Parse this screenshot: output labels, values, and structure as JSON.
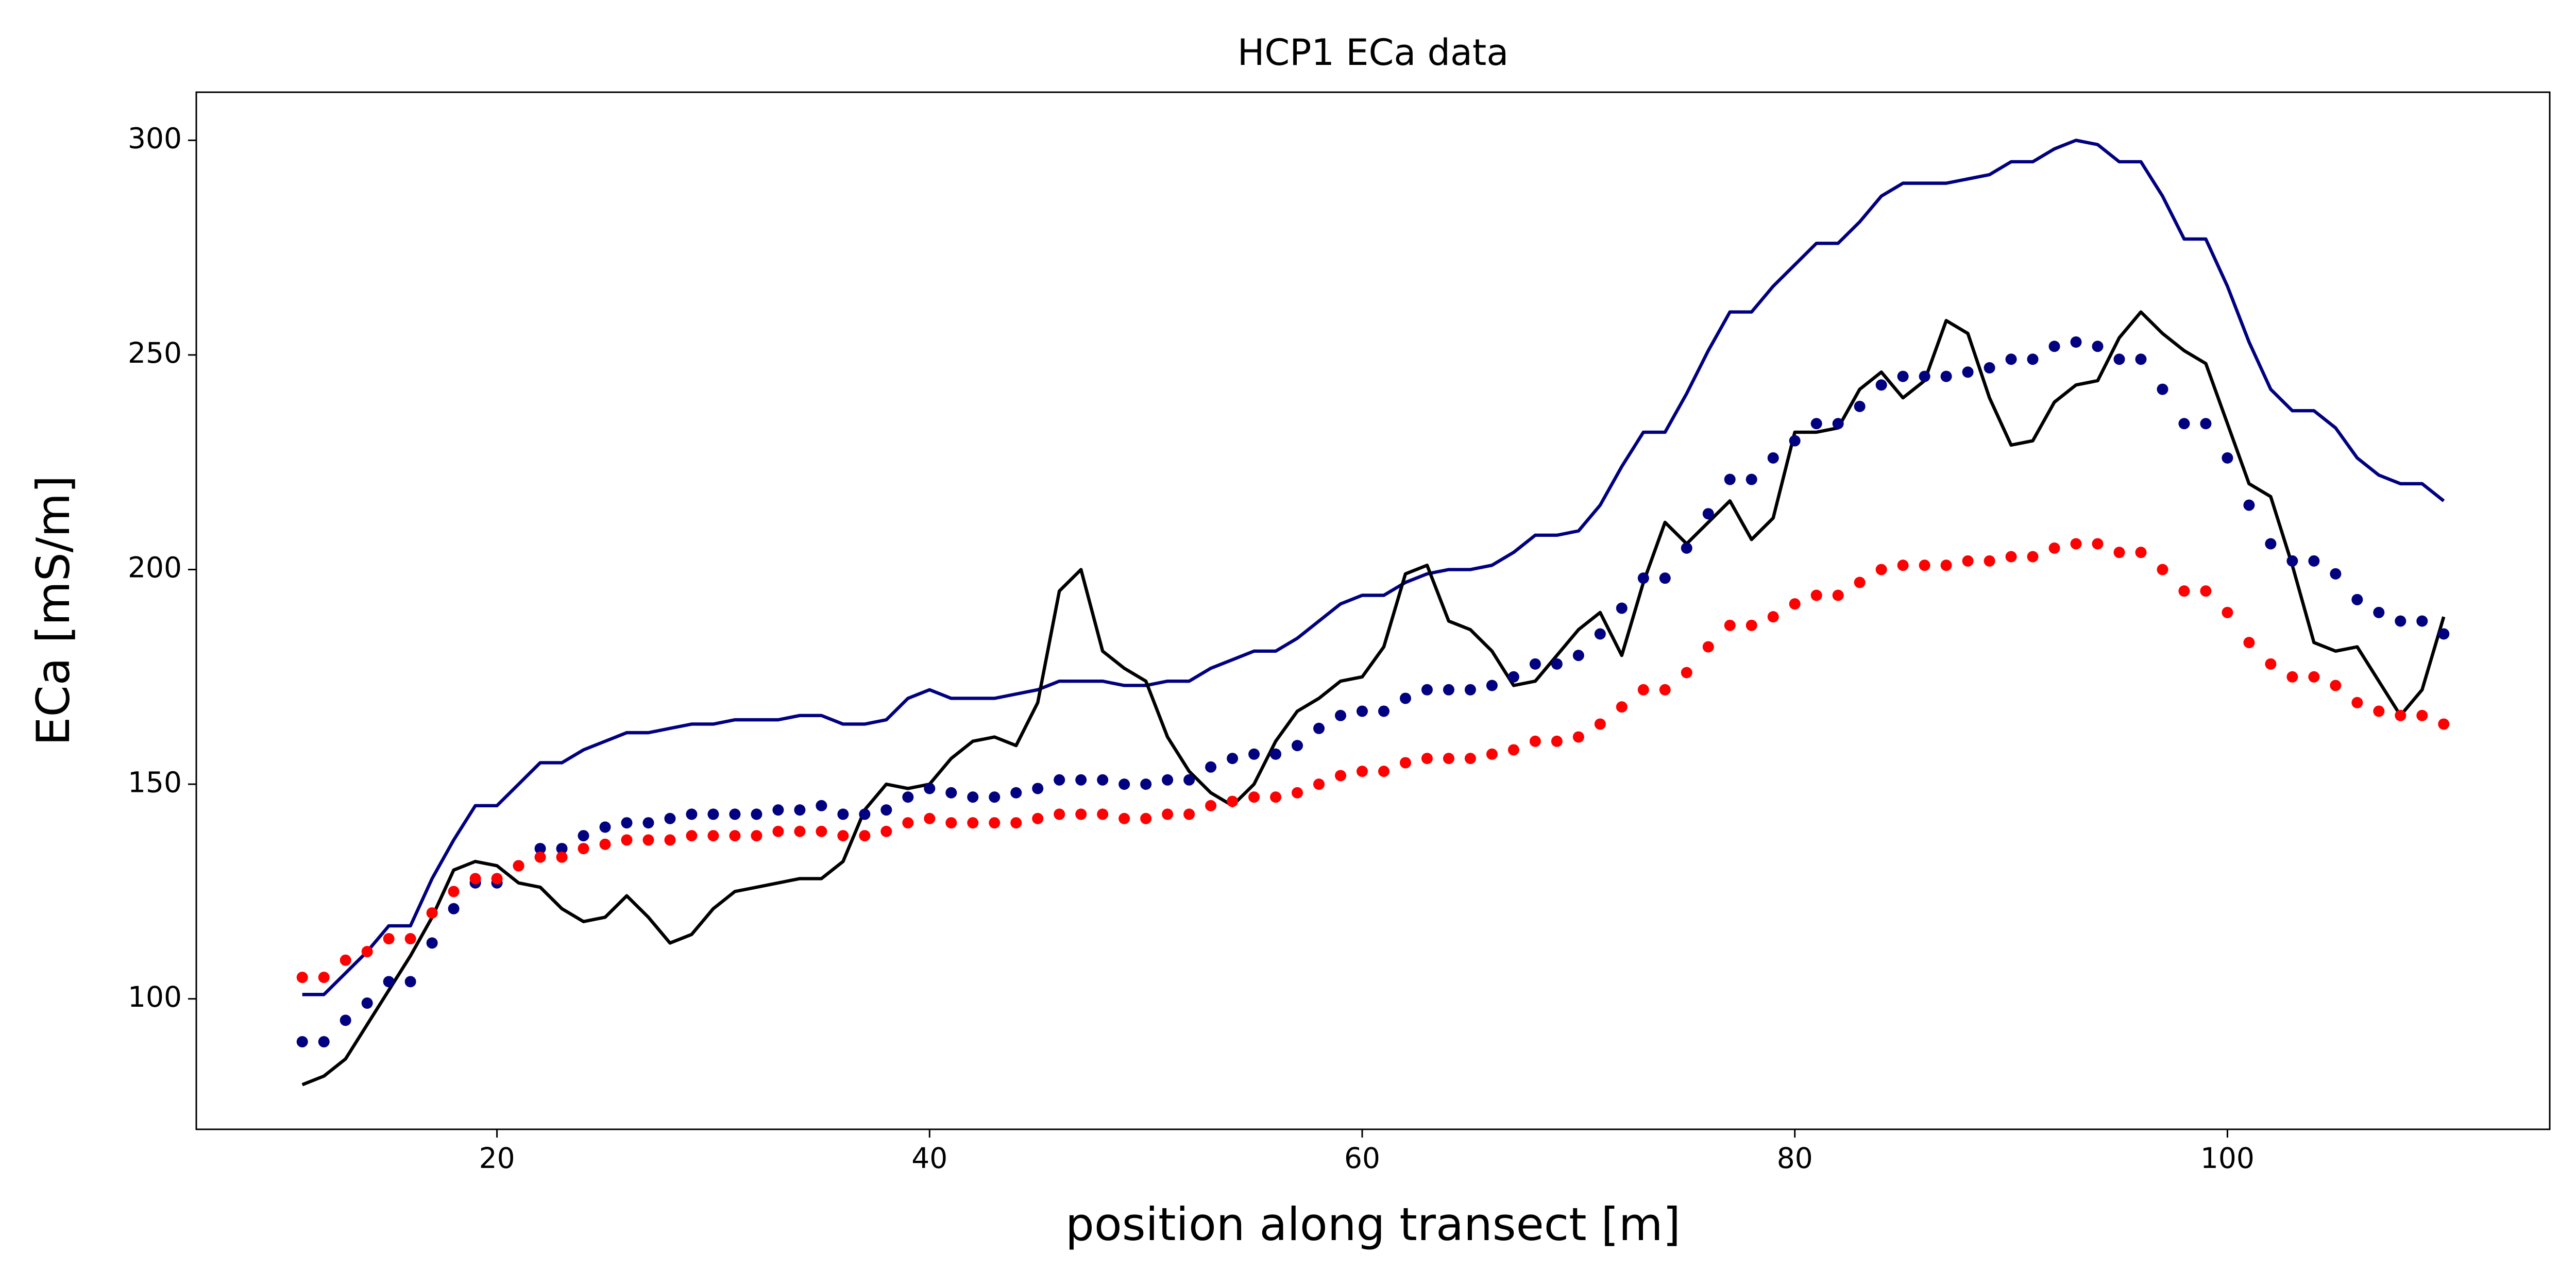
{
  "chart_data": {
    "type": "line",
    "title": "HCP1 ECa data",
    "x_label": "position along transect [m]",
    "y_label": "ECa [mS/m]",
    "x": [
      11,
      12,
      13,
      14,
      15,
      16,
      17,
      18,
      19,
      20,
      21,
      22,
      23,
      24,
      25,
      26,
      27,
      28,
      29,
      30,
      31,
      32,
      33,
      34,
      35,
      36,
      37,
      38,
      39,
      40,
      41,
      42,
      43,
      44,
      45,
      46,
      47,
      48,
      49,
      50,
      51,
      52,
      53,
      54,
      55,
      56,
      57,
      58,
      59,
      60,
      61,
      62,
      63,
      64,
      65,
      66,
      67,
      68,
      69,
      70,
      71,
      72,
      73,
      74,
      75,
      76,
      77,
      78,
      79,
      80,
      81,
      82,
      83,
      84,
      85,
      86,
      87,
      88,
      89,
      90,
      91,
      92,
      93,
      94,
      95,
      96,
      97,
      98,
      99,
      100,
      101,
      102,
      103,
      104,
      105,
      106,
      107,
      108,
      109,
      110
    ],
    "series": [
      {
        "style": "line",
        "color": "#000080",
        "values": [
          101,
          101,
          106,
          111,
          117,
          117,
          128,
          137,
          145,
          145,
          150,
          155,
          155,
          158,
          160,
          162,
          162,
          163,
          164,
          164,
          165,
          165,
          165,
          166,
          166,
          164,
          164,
          165,
          170,
          172,
          170,
          170,
          170,
          171,
          172,
          174,
          174,
          174,
          173,
          173,
          174,
          174,
          177,
          179,
          181,
          181,
          184,
          188,
          192,
          194,
          194,
          197,
          199,
          200,
          200,
          201,
          204,
          208,
          208,
          209,
          215,
          224,
          232,
          232,
          241,
          251,
          260,
          260,
          266,
          271,
          276,
          276,
          281,
          287,
          290,
          290,
          290,
          291,
          292,
          295,
          295,
          298,
          300,
          299,
          295,
          295,
          287,
          277,
          277,
          266,
          253,
          242,
          237,
          237,
          233,
          226,
          222,
          220,
          220,
          216
        ]
      },
      {
        "style": "line",
        "color": "#000000",
        "values": [
          80,
          82,
          86,
          94,
          102,
          110,
          119,
          130,
          132,
          131,
          127,
          126,
          121,
          118,
          119,
          124,
          119,
          113,
          115,
          121,
          125,
          126,
          127,
          128,
          128,
          132,
          144,
          150,
          149,
          150,
          156,
          160,
          161,
          159,
          169,
          195,
          200,
          181,
          177,
          174,
          161,
          153,
          148,
          145,
          150,
          160,
          167,
          170,
          174,
          175,
          182,
          199,
          201,
          188,
          186,
          181,
          173,
          174,
          180,
          186,
          190,
          180,
          197,
          211,
          206,
          211,
          216,
          207,
          212,
          232,
          232,
          233,
          242,
          246,
          240,
          244,
          258,
          255,
          240,
          229,
          230,
          239,
          243,
          244,
          254,
          260,
          255,
          251,
          248,
          234,
          220,
          217,
          201,
          183,
          181,
          182,
          174,
          166,
          172,
          189
        ]
      },
      {
        "style": "dots",
        "color": "#000080",
        "values": [
          90,
          90,
          95,
          99,
          104,
          104,
          113,
          121,
          127,
          127,
          131,
          135,
          135,
          138,
          140,
          141,
          141,
          142,
          143,
          143,
          143,
          143,
          144,
          144,
          145,
          143,
          143,
          144,
          147,
          149,
          148,
          147,
          147,
          148,
          149,
          151,
          151,
          151,
          150,
          150,
          151,
          151,
          154,
          156,
          157,
          157,
          159,
          163,
          166,
          167,
          167,
          170,
          172,
          172,
          172,
          173,
          175,
          178,
          178,
          180,
          185,
          191,
          198,
          198,
          205,
          213,
          221,
          221,
          226,
          230,
          234,
          234,
          238,
          243,
          245,
          245,
          245,
          246,
          247,
          249,
          249,
          252,
          253,
          252,
          249,
          249,
          242,
          234,
          234,
          226,
          215,
          206,
          202,
          202,
          199,
          193,
          190,
          188,
          188,
          185
        ]
      },
      {
        "style": "dots",
        "color": "#ff0000",
        "values": [
          105,
          105,
          109,
          111,
          114,
          114,
          120,
          125,
          128,
          128,
          131,
          133,
          133,
          135,
          136,
          137,
          137,
          137,
          138,
          138,
          138,
          138,
          139,
          139,
          139,
          138,
          138,
          139,
          141,
          142,
          141,
          141,
          141,
          141,
          142,
          143,
          143,
          143,
          142,
          142,
          143,
          143,
          145,
          146,
          147,
          147,
          148,
          150,
          152,
          153,
          153,
          155,
          156,
          156,
          156,
          157,
          158,
          160,
          160,
          161,
          164,
          168,
          172,
          172,
          176,
          182,
          187,
          187,
          189,
          192,
          194,
          194,
          197,
          200,
          201,
          201,
          201,
          202,
          202,
          203,
          203,
          205,
          206,
          206,
          204,
          204,
          200,
          195,
          195,
          190,
          183,
          178,
          175,
          175,
          173,
          169,
          167,
          166,
          166,
          164
        ]
      }
    ],
    "xlim": [
      6.1,
      114.9
    ],
    "ylim": [
      69.6,
      311.2
    ],
    "xticks": [
      20,
      40,
      60,
      80,
      100
    ],
    "yticks": [
      100,
      150,
      200,
      250,
      300
    ]
  }
}
